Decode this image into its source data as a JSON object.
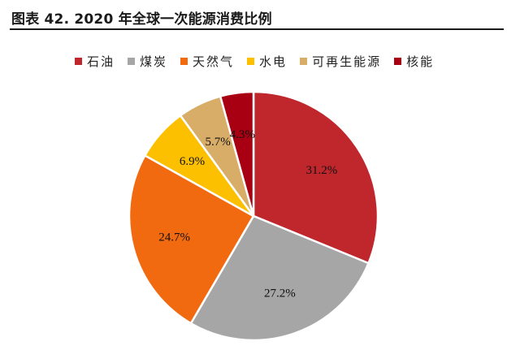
{
  "figure": {
    "title": "图表 42. 2020 年全球一次能源消费比例"
  },
  "chart_data": {
    "type": "pie",
    "title": "",
    "legend_position": "top",
    "categories": [
      "石油",
      "煤炭",
      "天然气",
      "水电",
      "可再生能源",
      "核能"
    ],
    "values": [
      31.2,
      27.2,
      24.7,
      6.9,
      5.7,
      4.3
    ],
    "labels": [
      "31.2%",
      "27.2%",
      "24.7%",
      "6.9%",
      "5.7%",
      "4.3%"
    ],
    "colors": [
      "#c0272d",
      "#a6a6a6",
      "#f26a10",
      "#fcc000",
      "#d8ad68",
      "#a80012"
    ]
  }
}
